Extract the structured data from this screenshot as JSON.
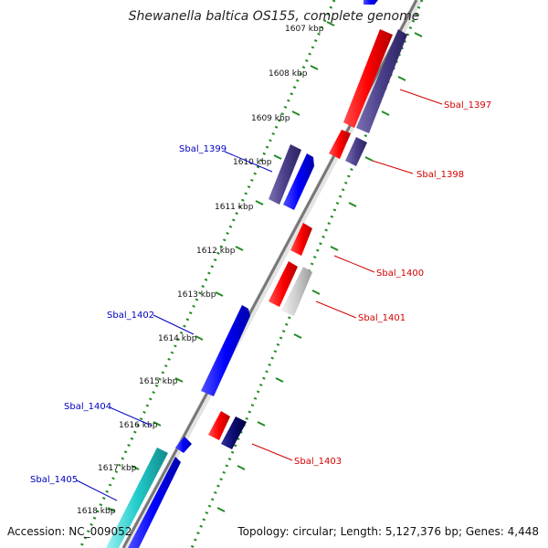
{
  "title": "Shewanella baltica OS155, complete genome",
  "accession": "Accession: NC_009052",
  "summary": "Topology: circular; Length: 5,127,376 bp; Genes: 4,448",
  "colors": {
    "forward_gene": "#ff1a1a",
    "reverse_gene": "#1a1aff",
    "dark_gene": "#4a3f8a",
    "navy_gene": "#0a0a6e",
    "cyan_gene": "#22cccc",
    "grey_gene": "#c8c8c8",
    "ruler": "#228b22",
    "backbone": "#777777",
    "label_forward": "#d40000",
    "label_reverse": "#0000c0"
  },
  "ticks": [
    {
      "label": "1607 kbp"
    },
    {
      "label": "1608 kbp"
    },
    {
      "label": "1609 kbp"
    },
    {
      "label": "1610 kbp"
    },
    {
      "label": "1611 kbp"
    },
    {
      "label": "1612 kbp"
    },
    {
      "label": "1613 kbp"
    },
    {
      "label": "1614 kbp"
    },
    {
      "label": "1615 kbp"
    },
    {
      "label": "1616 kbp"
    },
    {
      "label": "1617 kbp"
    },
    {
      "label": "1618 kbp"
    }
  ],
  "gene_labels": [
    {
      "name": "Sbal_1397",
      "strand": "forward"
    },
    {
      "name": "Sbal_1398",
      "strand": "forward"
    },
    {
      "name": "Sbal_1399",
      "strand": "reverse"
    },
    {
      "name": "Sbal_1400",
      "strand": "forward"
    },
    {
      "name": "Sbal_1401",
      "strand": "forward"
    },
    {
      "name": "Sbal_1402",
      "strand": "reverse"
    },
    {
      "name": "Sbal_1403",
      "strand": "forward"
    },
    {
      "name": "Sbal_1404",
      "strand": "reverse"
    },
    {
      "name": "Sbal_1405",
      "strand": "reverse"
    }
  ]
}
